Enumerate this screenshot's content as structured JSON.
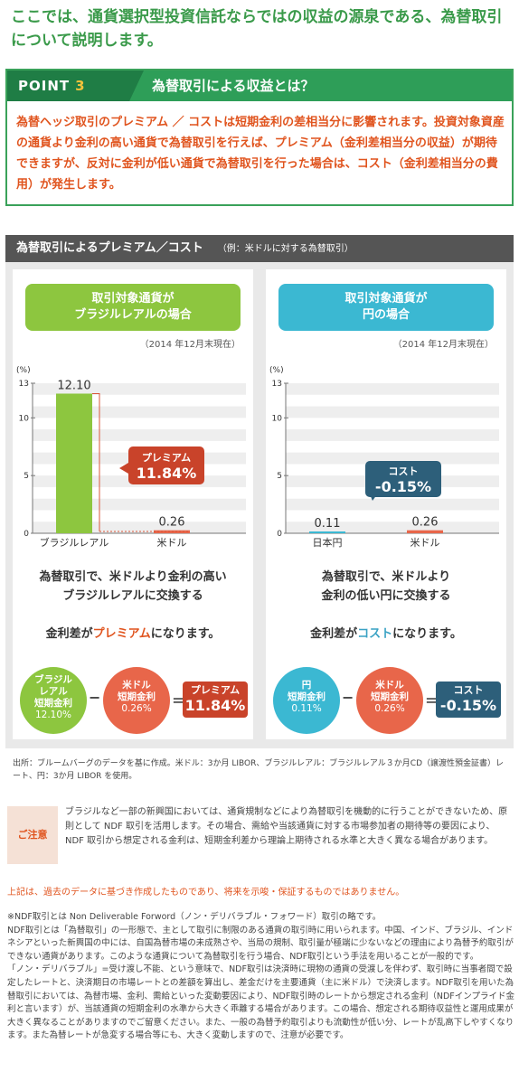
{
  "intro": "ここでは、通貨選択型投資信託ならではの収益の源泉である、為替取引について説明します。",
  "point": {
    "label": "POINT",
    "number": "3",
    "title": "為替取引による収益とは？",
    "body": "為替ヘッジ取引のプレミアム ／ コストは短期金利の差相当分に影響されます。投資対象資産の通貨より金利の高い通貨で為替取引を行えば、プレミアム（金利差相当分の収益）が期待できますが、反対に金利が低い通貨で為替取引を行った場合は、コスト（金利差相当分の費用）が発生します。"
  },
  "section": {
    "title": "為替取引によるプレミアム／コスト",
    "subtitle": "（例：米ドルに対する為替取引）"
  },
  "left_panel": {
    "header_line1": "取引対象通貨が",
    "header_line2": "ブラジルレアルの場合",
    "as_of": "（2014 年12月末現在）",
    "callout_label": "プレミアム",
    "callout_value": "11.84%",
    "explain_line1": "為替取引で、米ドルより金利の高い",
    "explain_line2": "ブラジルレアルに交換する",
    "conclusion_pre": "金利差が",
    "conclusion_hl": "プレミアム",
    "conclusion_post": "になります。",
    "circle1_l1": "ブラジル",
    "circle1_l2": "レアル",
    "circle1_l3": "短期金利",
    "circle1_value": "12.10%",
    "circle2_l1": "米ドル",
    "circle2_l2": "短期金利",
    "circle2_value": "0.26%",
    "minus": "−",
    "equals": "＝",
    "result_label": "プレミアム",
    "result_value": "11.84%",
    "color_main": "#8dc63f",
    "color_sub": "#e8664a"
  },
  "right_panel": {
    "header_line1": "取引対象通貨が",
    "header_line2": "円の場合",
    "as_of": "（2014 年12月末現在）",
    "callout_label": "コスト",
    "callout_value": "-0.15%",
    "explain_line1": "為替取引で、米ドルより",
    "explain_line2": "金利の低い円に交換する",
    "conclusion_pre": "金利差が",
    "conclusion_hl": "コスト",
    "conclusion_post": "になります。",
    "circle1_l1": "円",
    "circle1_l2": "短期金利",
    "circle1_value": "0.11%",
    "circle2_l1": "米ドル",
    "circle2_l2": "短期金利",
    "circle2_value": "0.26%",
    "minus": "−",
    "equals": "＝",
    "result_label": "コスト",
    "result_value": "-0.15%",
    "color_main": "#3bb8d2",
    "color_sub": "#e8664a"
  },
  "chart_data": [
    {
      "type": "bar",
      "categories": [
        "ブラジルレアル",
        "米ドル"
      ],
      "values": [
        12.1,
        0.26
      ],
      "value_labels": [
        "12.10",
        "0.26"
      ],
      "ylabel": "(%)",
      "yticks": [
        0,
        5,
        10,
        13
      ],
      "ylim": [
        0,
        13
      ],
      "colors": [
        "#8dc63f",
        "#e8664a"
      ]
    },
    {
      "type": "bar",
      "categories": [
        "日本円",
        "米ドル"
      ],
      "values": [
        0.11,
        0.26
      ],
      "value_labels": [
        "0.11",
        "0.26"
      ],
      "ylabel": "(%)",
      "yticks": [
        0,
        5,
        10,
        13
      ],
      "ylim": [
        0,
        13
      ],
      "colors": [
        "#3bb8d2",
        "#e8664a"
      ]
    }
  ],
  "source": "出所：ブルームバーグのデータを基に作成。米ドル：3か月 LIBOR、ブラジルレアル：ブラジルレアル３か月CD（譲渡性預金証書）レート、円：3か月 LIBOR を使用。",
  "caution": {
    "tag": "ご注意",
    "text": "ブラジルなど一部の新興国においては、通貨規制などにより為替取引を機動的に行うことができないため、原則として NDF 取引を活用します。その場合、需給や当該通貨に対する市場参加者の期待等の要因により、NDF 取引から想定される金利は、短期金利差から理論上期待される水準と大きく異なる場合があります。"
  },
  "disclaimer": "上記は、過去のデータに基づき作成したものであり、将来を示唆・保証するものではありません。",
  "ndf": {
    "p1": "※NDF取引とは Non Deliverable Forword（ノン・デリバラブル・フォワード）取引の略です。",
    "p2": "NDF取引とは「為替取引」の一形態で、主として取引に制限のある通貨の取引時に用いられます。中国、インド、ブラジル、インドネシアといった新興国の中には、自国為替市場の未成熟さや、当局の規制、取引量が極端に少ないなどの理由により為替予約取引ができない通貨があります。このような通貨について為替取引を行う場合、NDF取引という手法を用いることが一般的です。",
    "p3": "「ノン・デリバラブル」=受け渡し不能、という意味で、NDF取引は決済時に現物の通貨の受渡しを伴わず、取引時に当事者間で設定したレートと、決済期日の市場レートとの差額を算出し、差金だけを主要通貨（主に米ドル）で決済します。NDF取引を用いた為替取引においては、為替市場、金利、需給といった変動要因により、NDF取引時のレートから想定される金利（NDFインプライド金利と言います）が、当該通貨の短期金利の水準から大きく乖離する場合があります。この場合、想定される期待収益性と運用成果が大きく異なることがありますのでご留意ください。また、一般の為替予約取引よりも流動性が低い分、レートが乱高下しやすくなります。また為替レートが急変する場合等にも、大きく変動しますので、注意が必要です。"
  }
}
